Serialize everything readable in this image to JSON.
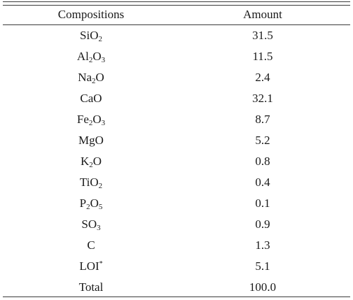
{
  "table": {
    "headers": {
      "composition": "Compositions",
      "amount": "Amount"
    },
    "rows": [
      {
        "composition": "SiO₂",
        "formula": [
          [
            "Si",
            ""
          ],
          [
            "O",
            ""
          ],
          [
            "2",
            "sub"
          ]
        ],
        "amount": "31.5"
      },
      {
        "composition": "Al₂O₃",
        "formula": [
          [
            "Al",
            ""
          ],
          [
            "2",
            "sub"
          ],
          [
            "O",
            ""
          ],
          [
            "3",
            "sub"
          ]
        ],
        "amount": "11.5"
      },
      {
        "composition": "Na₂O",
        "formula": [
          [
            "Na",
            ""
          ],
          [
            "2",
            "sub"
          ],
          [
            "O",
            ""
          ]
        ],
        "amount": "2.4"
      },
      {
        "composition": "CaO",
        "formula": [
          [
            "CaO",
            ""
          ]
        ],
        "amount": "32.1"
      },
      {
        "composition": "Fe₂O₃",
        "formula": [
          [
            "Fe",
            ""
          ],
          [
            "2",
            "sub"
          ],
          [
            "O",
            ""
          ],
          [
            "3",
            "sub"
          ]
        ],
        "amount": "8.7"
      },
      {
        "composition": "MgO",
        "formula": [
          [
            "MgO",
            ""
          ]
        ],
        "amount": "5.2"
      },
      {
        "composition": "K₂O",
        "formula": [
          [
            "K",
            ""
          ],
          [
            "2",
            "sub"
          ],
          [
            "O",
            ""
          ]
        ],
        "amount": "0.8"
      },
      {
        "composition": "TiO₂",
        "formula": [
          [
            "TiO",
            ""
          ],
          [
            "2",
            "sub"
          ]
        ],
        "amount": "0.4"
      },
      {
        "composition": "P₂O₅",
        "formula": [
          [
            "P",
            ""
          ],
          [
            "2",
            "sub"
          ],
          [
            "O",
            ""
          ],
          [
            "5",
            "sub"
          ]
        ],
        "amount": "0.1"
      },
      {
        "composition": "SO₃",
        "formula": [
          [
            "SO",
            ""
          ],
          [
            "3",
            "sub"
          ]
        ],
        "amount": "0.9"
      },
      {
        "composition": "C",
        "formula": [
          [
            "C",
            ""
          ]
        ],
        "amount": "1.3"
      },
      {
        "composition": "LOI*",
        "formula": [
          [
            "LOI",
            ""
          ],
          [
            "*",
            "sup"
          ]
        ],
        "amount": "5.1"
      },
      {
        "composition": "Total",
        "formula": [
          [
            "Total",
            ""
          ]
        ],
        "amount": "100.0"
      }
    ]
  }
}
